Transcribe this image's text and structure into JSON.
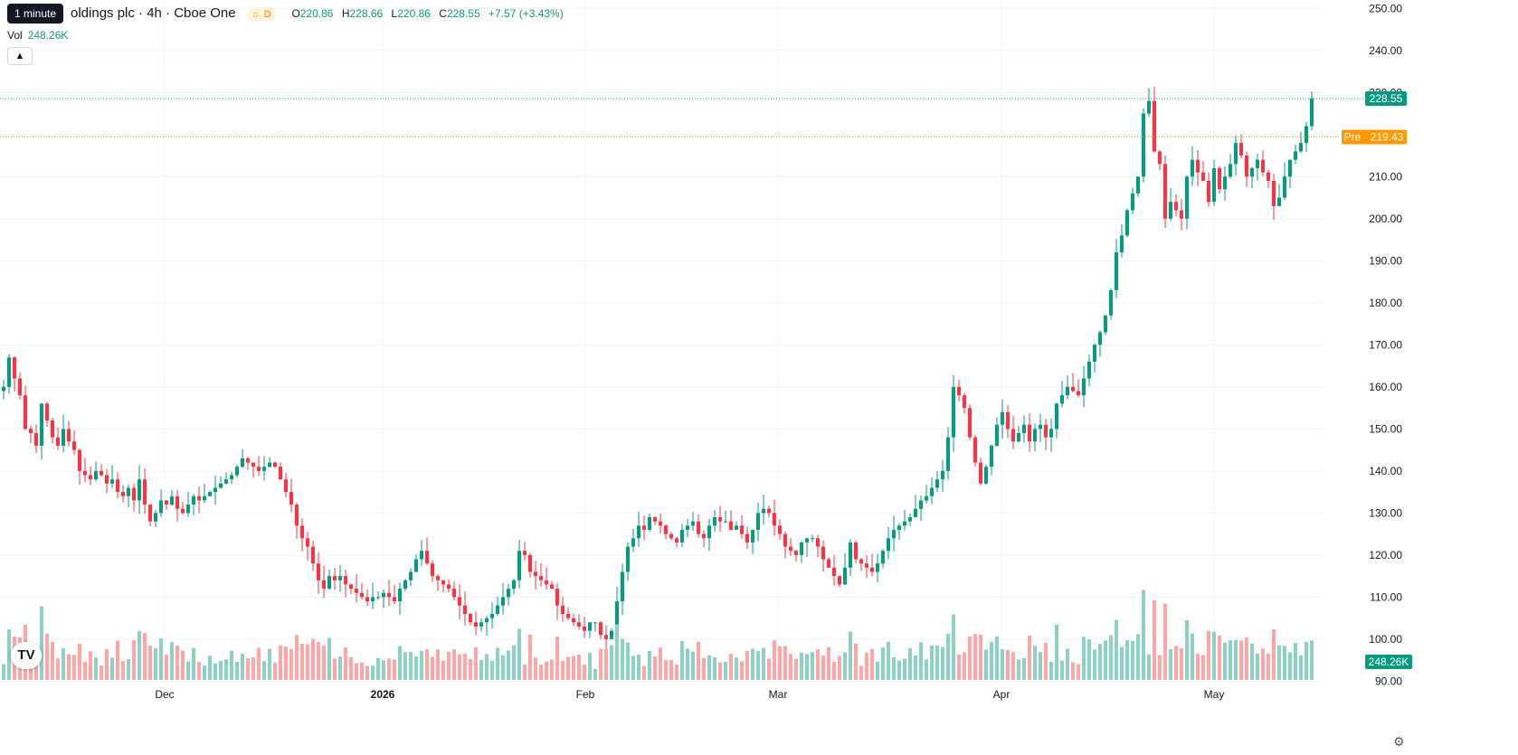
{
  "header": {
    "tooltip": "1 minute",
    "title": "oldings plc · 4h · Cboe One",
    "session_badge": "D",
    "ohlc": {
      "o_label": "O",
      "o": "220.86",
      "h_label": "H",
      "h": "228.66",
      "l_label": "L",
      "l": "220.86",
      "c_label": "C",
      "c": "228.55",
      "change": "+7.57 (+3.43%)"
    }
  },
  "volume": {
    "label": "Vol",
    "value": "248.26K"
  },
  "price_tags": {
    "last": "228.55",
    "pre_label": "Pre",
    "pre": "219.43",
    "volume": "248.26K"
  },
  "icons": {
    "logo": "tradingview-logo-icon",
    "settings": "gear-icon",
    "collapse": "chevron-up-icon"
  },
  "logo_text": "TV",
  "colors": {
    "up": "#089981",
    "down": "#f23645",
    "up_vol": "#8fcfc4",
    "down_vol": "#f7a9a7",
    "pre": "#ff9800"
  },
  "chart_data": {
    "type": "candlestick",
    "yaxis": {
      "ticks": [
        250,
        240,
        230,
        220,
        210,
        200,
        190,
        180,
        170,
        160,
        150,
        140,
        130,
        120,
        110,
        100,
        90
      ],
      "ylim": [
        90.3,
        252
      ]
    },
    "xaxis": {
      "labels": [
        "Dec",
        "2026",
        "Feb",
        "Mar",
        "Apr",
        "May"
      ]
    },
    "grid": true,
    "last_price": 228.55,
    "pre_price": 219.43,
    "closes": [
      160,
      167,
      162,
      158,
      150,
      149,
      146,
      156,
      152,
      148,
      146,
      150,
      147,
      145,
      140,
      139,
      138,
      140,
      139,
      137,
      138,
      135,
      134,
      136,
      133,
      138,
      132,
      128,
      130,
      133,
      132,
      134,
      131,
      130,
      132,
      134,
      133,
      134,
      135,
      136,
      137,
      138,
      139,
      141,
      143,
      142,
      141,
      140,
      141,
      142,
      141,
      138,
      135,
      132,
      127,
      124,
      122,
      118,
      114,
      112,
      115,
      114,
      115,
      113,
      112,
      111,
      110,
      109,
      110,
      110,
      111,
      110,
      109,
      112,
      114,
      116,
      119,
      121,
      118,
      115,
      114,
      113,
      112,
      110,
      108,
      106,
      104,
      103,
      104,
      105,
      106,
      108,
      110,
      112,
      114,
      121,
      120,
      116,
      115,
      114,
      113,
      112,
      108,
      106,
      105,
      104,
      103,
      102,
      104,
      104,
      101,
      100,
      102,
      109,
      116,
      122,
      124,
      127,
      126,
      129,
      128,
      127,
      125,
      124,
      123,
      126,
      127,
      128,
      125,
      124,
      127,
      129,
      128,
      128,
      126,
      127,
      125,
      123,
      126,
      130,
      131,
      130,
      127,
      125,
      122,
      121,
      120,
      123,
      124,
      124,
      122,
      119,
      117,
      115,
      113,
      117,
      123,
      119,
      118,
      117,
      116,
      118,
      121,
      124,
      126,
      127,
      128,
      129,
      131,
      133,
      134,
      136,
      138,
      140,
      148,
      160,
      158,
      155,
      148,
      142,
      137,
      141,
      146,
      151,
      154,
      150,
      147,
      149,
      151,
      147,
      150,
      151,
      148,
      150,
      156,
      158,
      160,
      159,
      158,
      162,
      166,
      170,
      173,
      177,
      183,
      192,
      196,
      202,
      206,
      210,
      225,
      228,
      216,
      213,
      200,
      204,
      202,
      200,
      210,
      214,
      211,
      209,
      204,
      212,
      207,
      210,
      213,
      218,
      215,
      210,
      212,
      214,
      211,
      209,
      203,
      205,
      210,
      214,
      216,
      218,
      222,
      228.55
    ]
  }
}
